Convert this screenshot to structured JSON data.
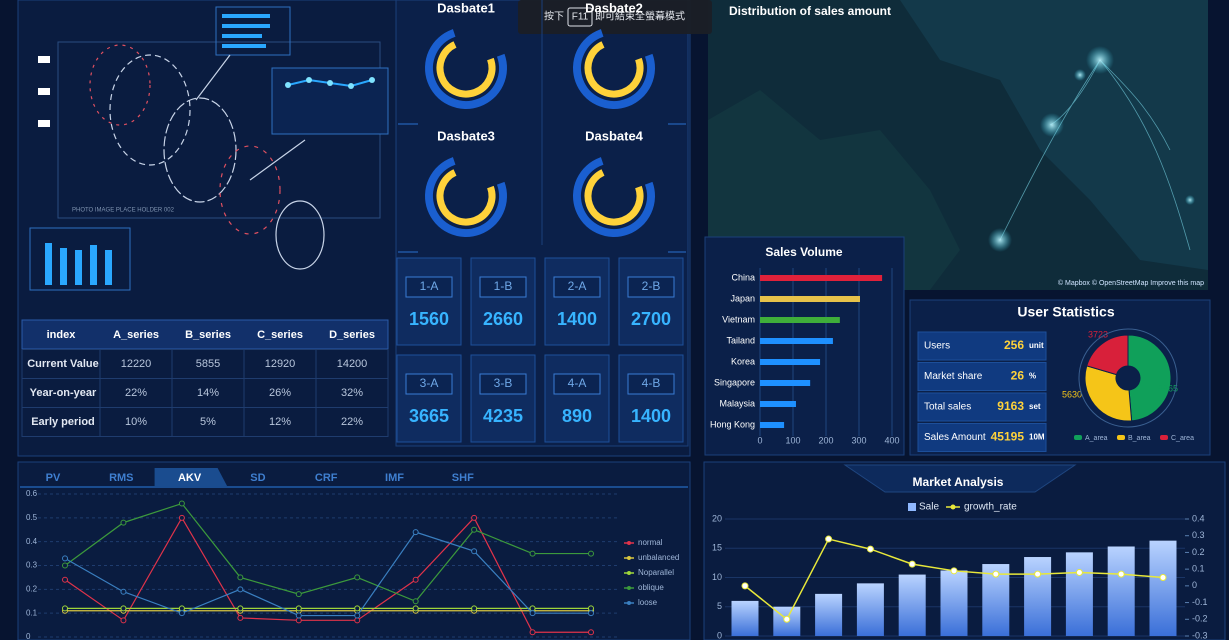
{
  "overlay": {
    "prefix": "按下",
    "key": "F11",
    "suffix": "即可結束全螢幕模式"
  },
  "illustration": {
    "caption": "PHOTO IMAGE PLACE HOLDER 002"
  },
  "table": {
    "header": [
      "index",
      "A_series",
      "B_series",
      "C_series",
      "D_series"
    ],
    "rows": [
      [
        "Current Value",
        12220,
        5855,
        12920,
        14200
      ],
      [
        "Year-on-year",
        "22%",
        "14%",
        "26%",
        "32%"
      ],
      [
        "Early period",
        "10%",
        "5%",
        "12%",
        "22%"
      ]
    ]
  },
  "gauges": [
    {
      "title": "Dasbate1"
    },
    {
      "title": "Dasbate2"
    },
    {
      "title": "Dasbate3"
    },
    {
      "title": "Dasbate4"
    }
  ],
  "tiles": [
    {
      "label": "1-A",
      "value": 1560
    },
    {
      "label": "1-B",
      "value": 2660
    },
    {
      "label": "2-A",
      "value": 1400
    },
    {
      "label": "2-B",
      "value": 2700
    },
    {
      "label": "3-A",
      "value": 3665
    },
    {
      "label": "3-B",
      "value": 4235
    },
    {
      "label": "4-A",
      "value": 890
    },
    {
      "label": "4-B",
      "value": 1400
    }
  ],
  "map": {
    "title": "Distribution of sales amount",
    "attribution": "© Mapbox © OpenStreetMap Improve this map"
  },
  "stats": {
    "title": "User Statistics",
    "rows": [
      {
        "label": "Users",
        "value": 256,
        "unit": "unit"
      },
      {
        "label": "Market share",
        "value": 26,
        "unit": "%"
      },
      {
        "label": "Total sales",
        "value": 9163,
        "unit": "set"
      },
      {
        "label": "Sales Amount",
        "value": 45195,
        "unit": "10M"
      }
    ]
  },
  "tabs": {
    "items": [
      "PV",
      "RMS",
      "AKV",
      "SD",
      "CRF",
      "IMF",
      "SHF"
    ],
    "active": 2
  },
  "chart_data": [
    {
      "type": "hbar",
      "title": "Sales Volume",
      "categories": [
        "China",
        "Japan",
        "Vietnam",
        "Tailand",
        "Korea",
        "Singapore",
        "Malaysia",
        "Hong Kong"
      ],
      "values": [
        370,
        303,
        242,
        221,
        182,
        152,
        109,
        73
      ],
      "colors": [
        "#e0213a",
        "#e6c24a",
        "#3fae3a",
        "#1e90ff",
        "#1e90ff",
        "#1e90ff",
        "#1e90ff",
        "#1e90ff"
      ],
      "xlim": [
        0,
        400
      ],
      "xticks": [
        0,
        100,
        200,
        300,
        400
      ],
      "grid": true
    },
    {
      "type": "pie",
      "categories": [
        "A_area",
        "B_area",
        "C_area"
      ],
      "values": [
        8865,
        5630,
        3723
      ],
      "colors": [
        "#10a05a",
        "#f5c518",
        "#d8203a"
      ]
    },
    {
      "type": "line",
      "ylim": [
        0,
        0.6
      ],
      "yticks": [
        0,
        0.1,
        0.2,
        0.3,
        0.4,
        0.5,
        0.6
      ],
      "grid": true,
      "series": [
        {
          "name": "normal",
          "color": "#e0334a",
          "values": [
            0.24,
            0.07,
            0.5,
            0.08,
            0.07,
            0.07,
            0.24,
            0.5,
            0.02,
            0.02
          ]
        },
        {
          "name": "unbalanced",
          "color": "#d8c640",
          "values": [
            0.11,
            0.11,
            0.11,
            0.11,
            0.11,
            0.11,
            0.11,
            0.11,
            0.11,
            0.11
          ]
        },
        {
          "name": "Noparallel",
          "color": "#9fd63a",
          "values": [
            0.12,
            0.12,
            0.12,
            0.12,
            0.12,
            0.12,
            0.12,
            0.12,
            0.12,
            0.12
          ]
        },
        {
          "name": "oblique",
          "color": "#3c9a3c",
          "values": [
            0.3,
            0.48,
            0.56,
            0.25,
            0.18,
            0.25,
            0.15,
            0.45,
            0.35,
            0.35
          ]
        },
        {
          "name": "loose",
          "color": "#3a7fc0",
          "values": [
            0.33,
            0.19,
            0.1,
            0.2,
            0.09,
            0.09,
            0.44,
            0.36,
            0.1,
            0.1
          ]
        }
      ]
    },
    {
      "type": "combo",
      "title": "Market Analysis",
      "ylim": [
        0,
        20
      ],
      "yticks": [
        0,
        5,
        10,
        15,
        20
      ],
      "y2lim": [
        -0.3,
        0.4
      ],
      "y2ticks": [
        -0.3,
        -0.2,
        -0.1,
        0,
        0.1,
        0.2,
        0.3,
        0.4
      ],
      "series": [
        {
          "name": "Sale",
          "type": "bar",
          "color": "#8fb8ff",
          "values": [
            6,
            5,
            7.2,
            9,
            10.5,
            11.2,
            12.3,
            13.5,
            14.3,
            15.3,
            16.3
          ]
        },
        {
          "name": "growth_rate",
          "type": "line",
          "axis": "y2",
          "color": "#e8e83a",
          "values": [
            0,
            -0.2,
            0.28,
            0.22,
            0.13,
            0.09,
            0.07,
            0.07,
            0.08,
            0.07,
            0.05
          ]
        }
      ]
    }
  ]
}
